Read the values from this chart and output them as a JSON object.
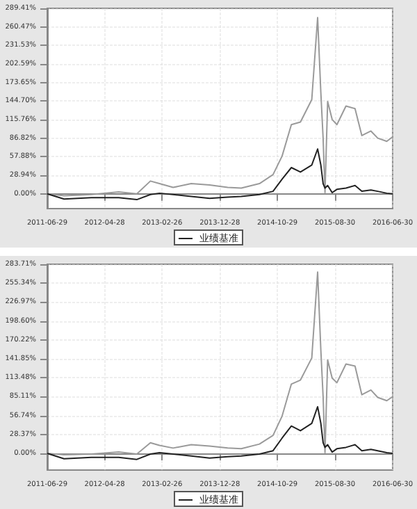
{
  "chart_data": [
    {
      "type": "line",
      "xlim": [
        "2011-06-29",
        "2016-06-30"
      ],
      "xticks": [
        "2011-06-29",
        "2012-04-28",
        "2013-02-26",
        "2013-12-28",
        "2014-10-29",
        "2015-08-30",
        "2016-06-30"
      ],
      "ylim": [
        -23,
        289.41
      ],
      "yticks": [
        {
          "value": 0,
          "label": "0.00%"
        },
        {
          "value": 28.94,
          "label": "28.94%"
        },
        {
          "value": 57.88,
          "label": "57.88%"
        },
        {
          "value": 86.82,
          "label": "86.82%"
        },
        {
          "value": 115.76,
          "label": "115.76%"
        },
        {
          "value": 144.7,
          "label": "144.70%"
        },
        {
          "value": 173.65,
          "label": "173.65%"
        },
        {
          "value": 202.59,
          "label": "202.59%"
        },
        {
          "value": 231.53,
          "label": "231.53%"
        },
        {
          "value": 260.47,
          "label": "260.47%"
        },
        {
          "value": 289.41,
          "label": "289.41%"
        }
      ],
      "grid": true,
      "legend": "bottom",
      "x": [
        "2011-06-29",
        "2011-09-26",
        "2012-02-17",
        "2012-07-11",
        "2012-10-15",
        "2012-12-26",
        "2013-02-12",
        "2013-04-25",
        "2013-07-30",
        "2013-11-04",
        "2014-02-08",
        "2014-04-21",
        "2014-07-26",
        "2014-10-06",
        "2014-11-23",
        "2015-01-11",
        "2015-02-28",
        "2015-04-29",
        "2015-05-30",
        "2015-06-16",
        "2015-06-28",
        "2015-07-08",
        "2015-07-22",
        "2015-08-15",
        "2015-09-09",
        "2015-10-27",
        "2015-12-14",
        "2016-01-19",
        "2016-03-07",
        "2016-04-12",
        "2016-05-30",
        "2016-06-30"
      ],
      "series": [
        {
          "color": "#9a9a9a",
          "values": [
            0,
            -3,
            -1,
            3,
            0,
            20,
            16,
            10,
            16,
            14,
            10,
            9,
            16,
            30,
            59,
            108,
            112,
            147,
            275,
            158,
            87,
            2,
            144,
            116,
            108,
            137,
            133,
            91,
            98,
            87,
            82,
            89
          ]
        },
        {
          "name": "业绩基准",
          "color": "#222222",
          "values": [
            0,
            -8,
            -6,
            -6,
            -9,
            -1,
            1,
            -1,
            -4,
            -7,
            -5,
            -4,
            -1,
            4,
            23,
            41,
            34,
            45,
            70,
            45,
            16,
            9,
            13,
            2,
            7,
            9,
            13,
            4,
            6,
            4,
            1,
            0
          ]
        }
      ]
    },
    {
      "type": "line",
      "xlim": [
        "2011-06-29",
        "2016-06-30"
      ],
      "xticks": [
        "2011-06-29",
        "2012-04-28",
        "2013-02-26",
        "2013-12-28",
        "2014-10-29",
        "2015-08-30",
        "2016-06-30"
      ],
      "ylim": [
        -25,
        283.71
      ],
      "yticks": [
        {
          "value": 0,
          "label": "0.00%"
        },
        {
          "value": 28.37,
          "label": "28.37%"
        },
        {
          "value": 56.74,
          "label": "56.74%"
        },
        {
          "value": 85.11,
          "label": "85.11%"
        },
        {
          "value": 113.48,
          "label": "113.48%"
        },
        {
          "value": 141.85,
          "label": "141.85%"
        },
        {
          "value": 170.22,
          "label": "170.22%"
        },
        {
          "value": 198.6,
          "label": "198.60%"
        },
        {
          "value": 226.97,
          "label": "226.97%"
        },
        {
          "value": 255.34,
          "label": "255.34%"
        },
        {
          "value": 283.71,
          "label": "283.71%"
        }
      ],
      "grid": true,
      "legend": "bottom",
      "x": [
        "2011-06-29",
        "2011-09-26",
        "2012-02-17",
        "2012-07-11",
        "2012-10-15",
        "2012-12-26",
        "2013-02-12",
        "2013-04-25",
        "2013-07-30",
        "2013-11-04",
        "2014-02-08",
        "2014-04-21",
        "2014-07-26",
        "2014-10-06",
        "2014-11-23",
        "2015-01-11",
        "2015-02-28",
        "2015-04-29",
        "2015-05-30",
        "2015-06-16",
        "2015-06-28",
        "2015-07-08",
        "2015-07-22",
        "2015-08-15",
        "2015-09-09",
        "2015-10-27",
        "2015-12-14",
        "2016-01-19",
        "2016-03-07",
        "2016-04-12",
        "2016-05-30",
        "2016-06-30"
      ],
      "series": [
        {
          "color": "#9a9a9a",
          "values": [
            0,
            -2,
            -1,
            2,
            -1,
            16,
            12,
            8,
            13,
            11,
            8,
            7,
            14,
            27,
            56,
            104,
            110,
            143,
            272,
            155,
            85,
            1,
            140,
            113,
            106,
            134,
            131,
            88,
            95,
            84,
            79,
            85
          ]
        },
        {
          "name": "业绩基准",
          "color": "#222222",
          "values": [
            0,
            -8,
            -6,
            -6,
            -9,
            -1,
            1,
            -1,
            -4,
            -7,
            -5,
            -4,
            -1,
            4,
            23,
            41,
            34,
            45,
            70,
            45,
            16,
            9,
            13,
            2,
            7,
            9,
            13,
            4,
            6,
            4,
            1,
            0
          ]
        }
      ]
    }
  ]
}
